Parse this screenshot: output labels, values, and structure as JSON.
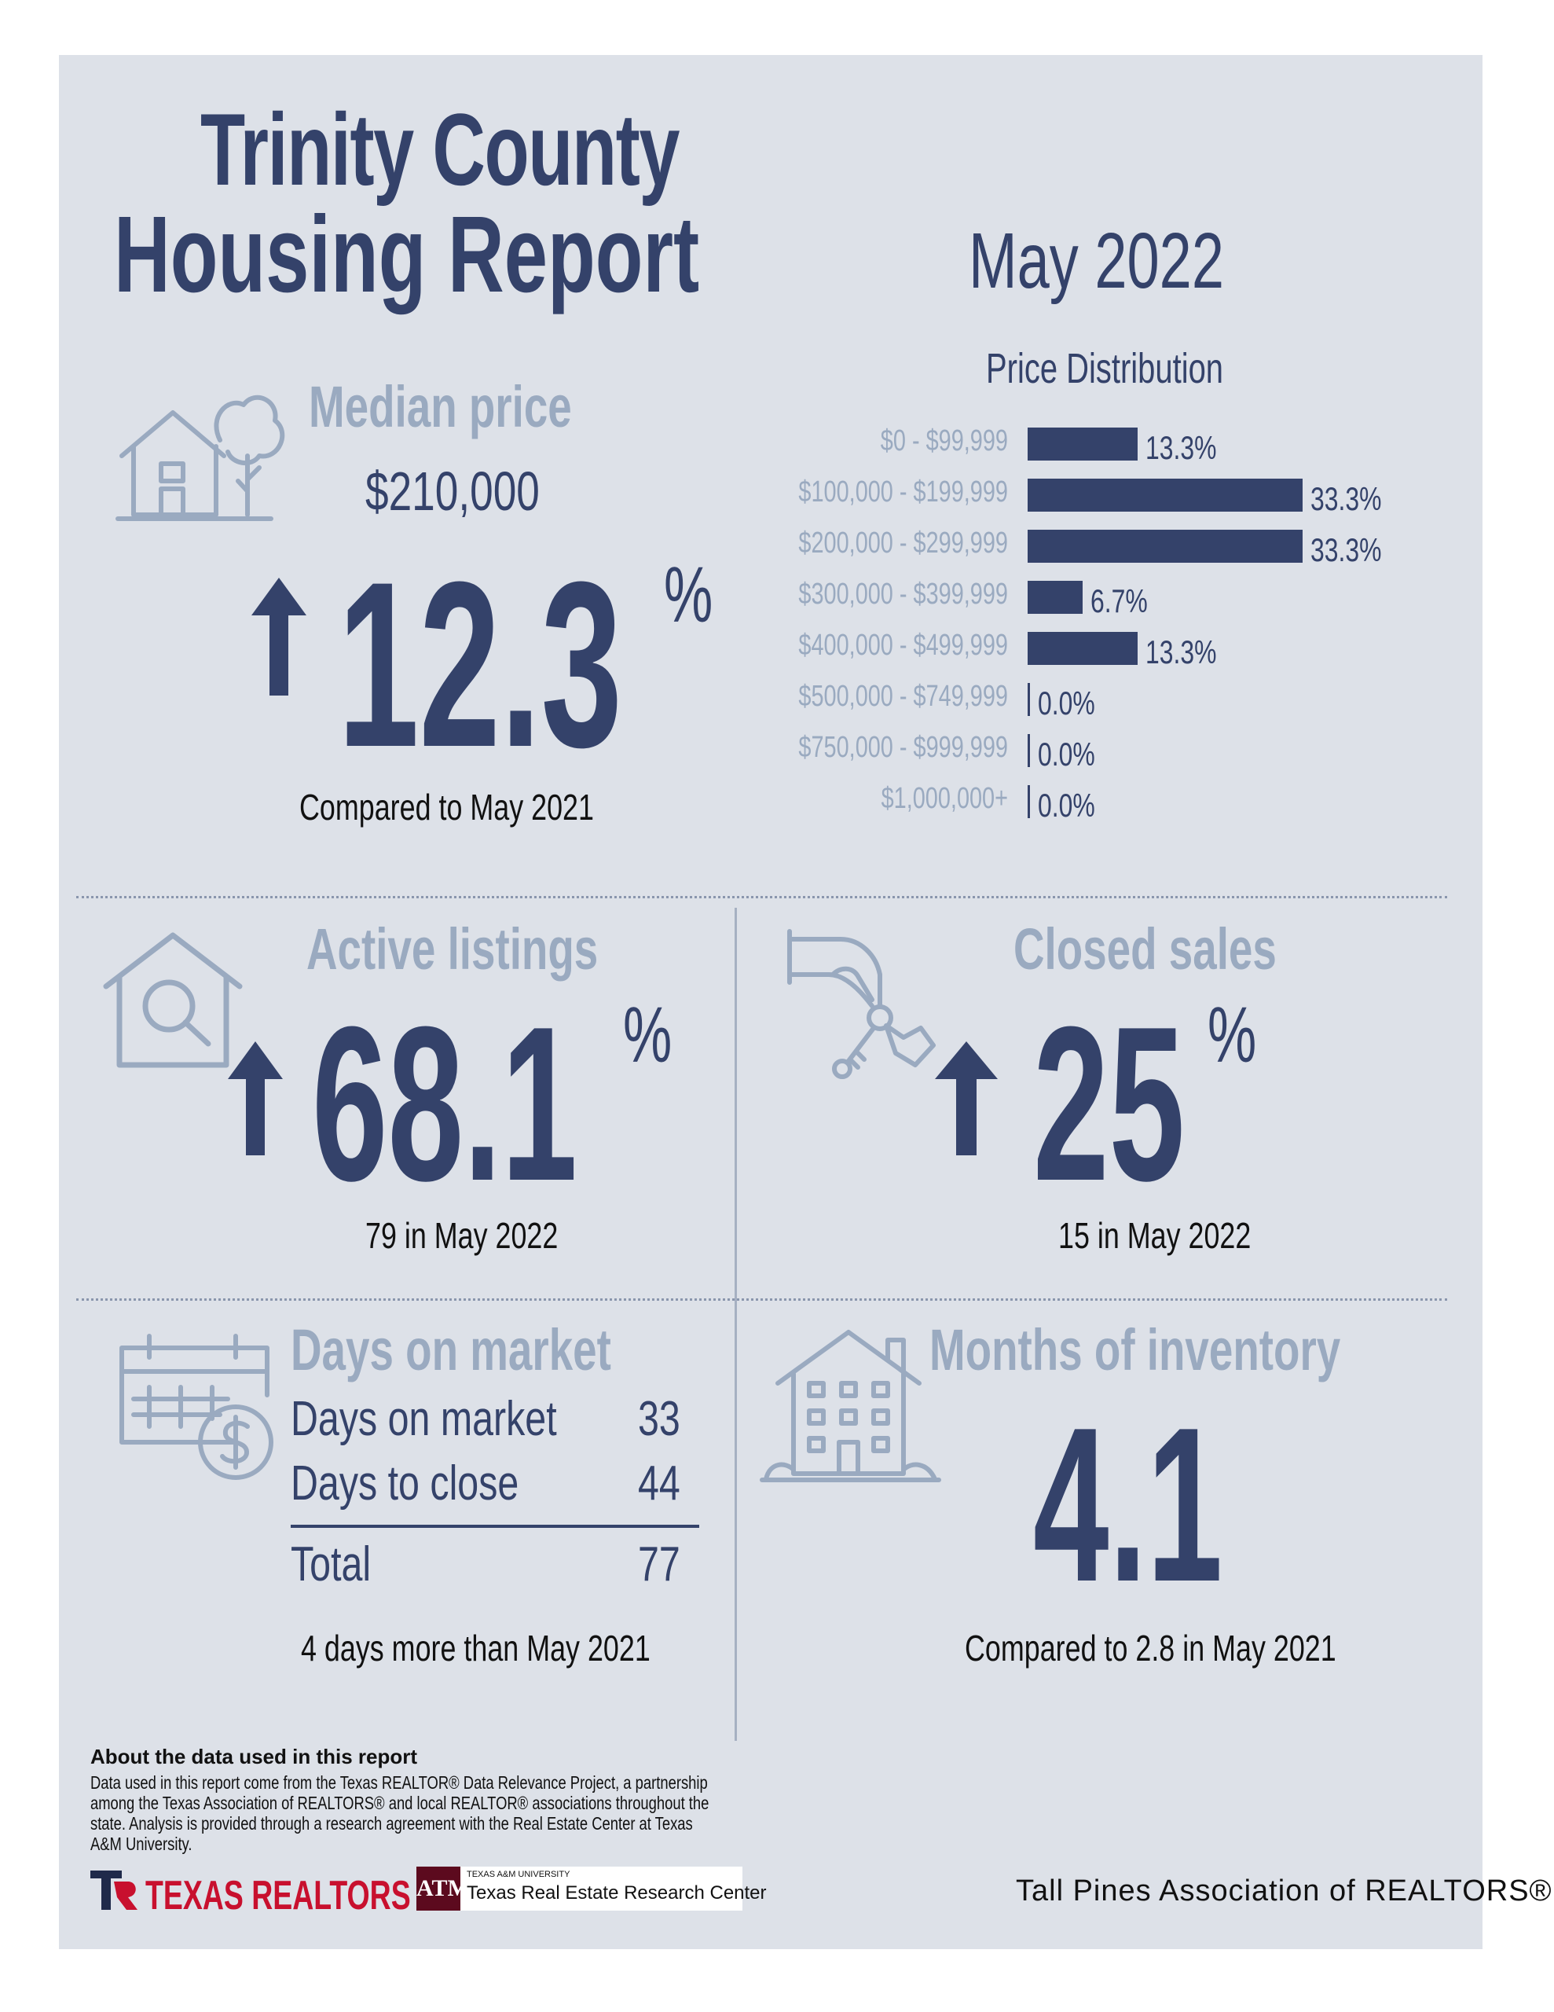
{
  "header": {
    "title_line1": "Trinity County",
    "title_line2": "Housing Report",
    "month": "May 2022"
  },
  "median_price": {
    "label": "Median price",
    "value": "$210,000",
    "change": "12.3",
    "change_unit": "%",
    "direction": "up",
    "caption": "Compared to May 2021"
  },
  "price_distribution": {
    "title": "Price Distribution",
    "rows": [
      {
        "label": "$0 - $99,999",
        "value": "13.3%"
      },
      {
        "label": "$100,000 - $199,999",
        "value": "33.3%"
      },
      {
        "label": "$200,000 - $299,999",
        "value": "33.3%"
      },
      {
        "label": "$300,000 - $399,999",
        "value": "6.7%"
      },
      {
        "label": "$400,000 - $499,999",
        "value": "13.3%"
      },
      {
        "label": "$500,000 - $749,999",
        "value": "0.0%"
      },
      {
        "label": "$750,000 - $999,999",
        "value": "0.0%"
      },
      {
        "label": "$1,000,000+",
        "value": "0.0%"
      }
    ]
  },
  "chart_data": {
    "type": "bar",
    "title": "Price Distribution",
    "categories": [
      "$0 - $99,999",
      "$100,000 - $199,999",
      "$200,000 - $299,999",
      "$300,000 - $399,999",
      "$400,000 - $499,999",
      "$500,000 - $749,999",
      "$750,000 - $999,999",
      "$1,000,000+"
    ],
    "values": [
      13.3,
      33.3,
      33.3,
      6.7,
      13.3,
      0.0,
      0.0,
      0.0
    ],
    "orientation": "horizontal",
    "xlim": [
      0,
      33.3
    ]
  },
  "active_listings": {
    "label": "Active listings",
    "change": "68.1",
    "change_unit": "%",
    "direction": "up",
    "caption": "79 in May 2022"
  },
  "closed_sales": {
    "label": "Closed sales",
    "change": "25",
    "change_unit": "%",
    "direction": "up",
    "caption": "15 in May 2022"
  },
  "days_on_market": {
    "label": "Days on market",
    "rows": [
      {
        "label": "Days on market",
        "value": "33"
      },
      {
        "label": "Days to close",
        "value": "44"
      }
    ],
    "total_label": "Total",
    "total_value": "77",
    "caption": "4 days more than May 2021"
  },
  "months_inventory": {
    "label": "Months of inventory",
    "value": "4.1",
    "caption": "Compared to 2.8 in May 2021"
  },
  "about": {
    "title": "About the data used in this report",
    "body": "Data used in this report come from the Texas REALTOR® Data Relevance Project, a partnership among the Texas Association of REALTORS® and local REALTOR® associations throughout the state. Analysis is provided through a research agreement with the Real Estate Center at Texas A&M University."
  },
  "footer": {
    "logo1_text": "TEXAS REALTORS",
    "logo2_small": "TEXAS A&M UNIVERSITY",
    "logo2_text": "Texas Real Estate Research Center",
    "association": "Tall Pines Association of REALTORS®"
  },
  "colors": {
    "navy": "#34426a",
    "light": "#9aaac0",
    "panel": "#dde1e8",
    "red": "#c8102e"
  }
}
